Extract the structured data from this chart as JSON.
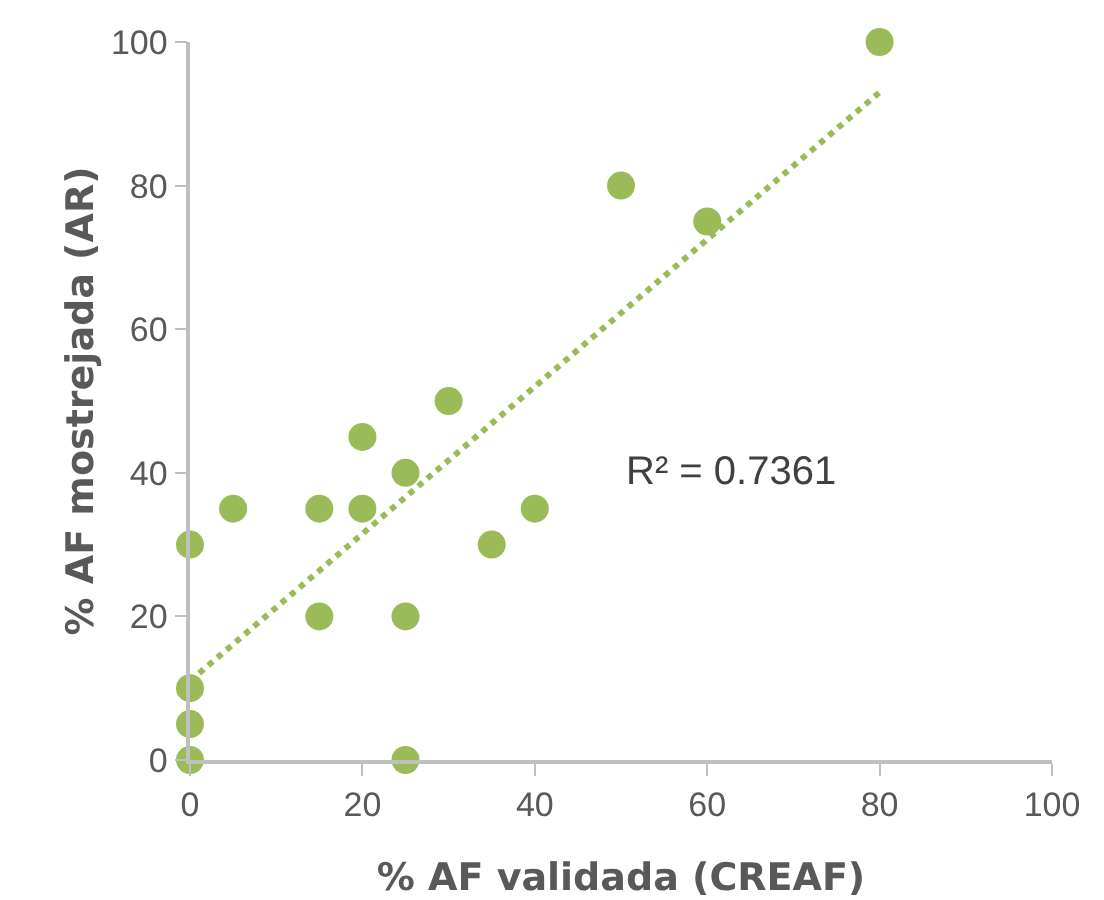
{
  "chart_data": {
    "type": "scatter",
    "xlabel": "% AF validada (CREAF)",
    "ylabel": "% AF mostrejada (AR)",
    "xlim": [
      0,
      100
    ],
    "xticks": [
      0,
      20,
      40,
      60,
      80,
      100
    ],
    "ylim": [
      0,
      100
    ],
    "yticks": [
      0,
      20,
      40,
      60,
      80,
      100
    ],
    "grid": false,
    "marker": "circle",
    "annotations": [
      "R² = 0.7361"
    ],
    "series": [
      {
        "color": "#9bbb59",
        "x": [
          0,
          0,
          0,
          0,
          5,
          15,
          15,
          20,
          20,
          25,
          25,
          25,
          30,
          35,
          40,
          50,
          60,
          80
        ],
        "values": [
          0,
          5,
          10,
          30,
          35,
          35,
          20,
          45,
          35,
          40,
          20,
          0,
          50,
          30,
          35,
          80,
          75,
          100
        ]
      },
      {
        "type": "line",
        "color": "#9bbb59",
        "line_style": "dotted",
        "marker": "none",
        "x": [
          0,
          80
        ],
        "values": [
          11,
          93
        ]
      }
    ]
  }
}
